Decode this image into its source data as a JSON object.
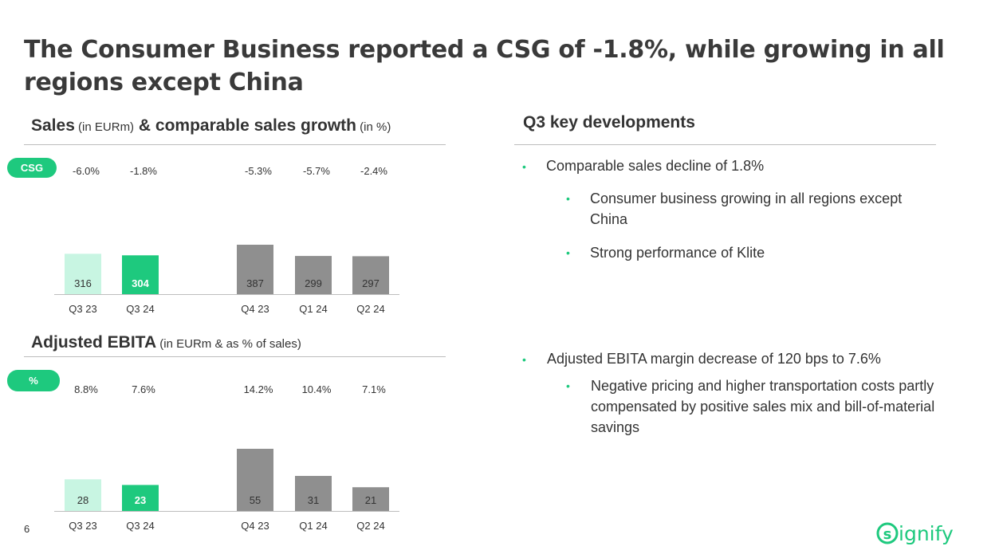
{
  "title": "The Consumer Business reported a CSG of -1.8%, while growing in all regions except China",
  "sales_section": {
    "title_bold_1": "Sales",
    "title_small_1": " (in EURm)",
    "title_bold_2": " & comparable sales growth",
    "title_small_2": " (in %)",
    "pill": "CSG"
  },
  "ebita_section": {
    "title_bold": "Adjusted EBITA",
    "title_small": " (in EURm & as % of sales)",
    "pill": "%"
  },
  "developments": {
    "title": "Q3 key developments",
    "bullet1": "Comparable sales decline of 1.8%",
    "sub1a": "Consumer business growing in all regions except China",
    "sub1b": "Strong performance of Klite",
    "bullet2": "Adjusted EBITA margin decrease of 120 bps to 7.6%",
    "sub2a": "Negative pricing and higher transportation costs partly compensated by positive sales mix and bill-of-material savings"
  },
  "page_number": "6",
  "logo_text": "signify",
  "colors": {
    "accent": "#1ec97e",
    "light_green": "#c8f5e2",
    "gray_bar": "#8f8f8f",
    "text": "#333333"
  },
  "chart_data": [
    {
      "type": "bar",
      "title": "Sales (in EURm) & comparable sales growth (in %)",
      "categories": [
        "Q3 23",
        "Q3 24",
        "Q4 23",
        "Q1 24",
        "Q2 24"
      ],
      "values": [
        316,
        304,
        387,
        299,
        297
      ],
      "labels": [
        "316",
        "304",
        "387",
        "299",
        "297"
      ],
      "growth_labels": [
        "-6.0%",
        "-1.8%",
        "-5.3%",
        "-5.7%",
        "-2.4%"
      ],
      "ylim": [
        0,
        387
      ]
    },
    {
      "type": "bar",
      "title": "Adjusted EBITA (in EURm & as % of sales)",
      "categories": [
        "Q3 23",
        "Q3 24",
        "Q4 23",
        "Q1 24",
        "Q2 24"
      ],
      "values": [
        28,
        23,
        55,
        31,
        21
      ],
      "labels": [
        "28",
        "23",
        "55",
        "31",
        "21"
      ],
      "margin_labels": [
        "8.8%",
        "7.6%",
        "14.2%",
        "10.4%",
        "7.1%"
      ],
      "ylim": [
        0,
        55
      ]
    }
  ]
}
